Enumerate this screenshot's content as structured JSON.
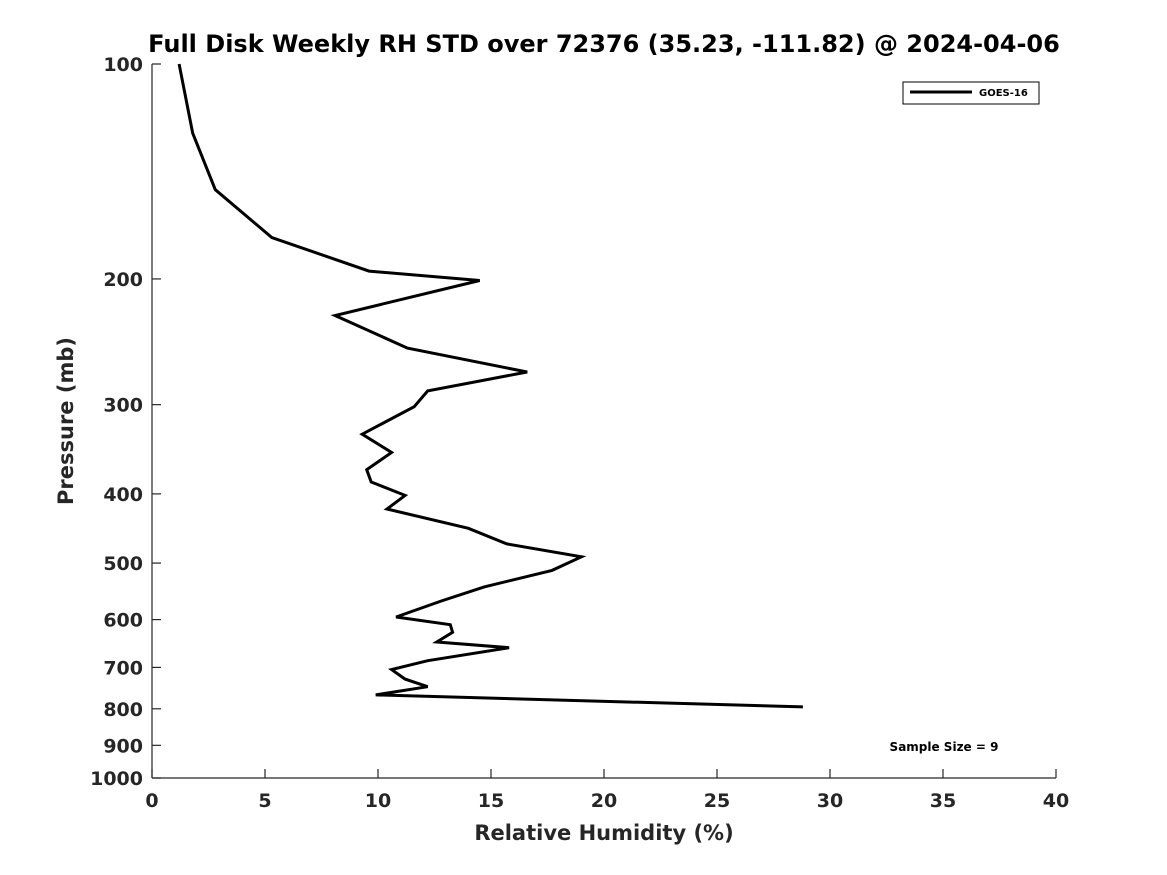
{
  "chart_data": {
    "type": "line",
    "title": "Full Disk Weekly RH STD over 72376 (35.23, -111.82) @ 2024-04-06",
    "xlabel": "Relative Humidity (%)",
    "ylabel": "Pressure (mb)",
    "xlim": [
      0,
      40
    ],
    "ylim": [
      100,
      1000
    ],
    "yscale": "log",
    "y_reversed": true,
    "grid": false,
    "xticks": [
      0,
      5,
      10,
      15,
      20,
      25,
      30,
      35,
      40
    ],
    "xtick_labels": [
      "0",
      "5",
      "10",
      "15",
      "20",
      "25",
      "30",
      "35",
      "40"
    ],
    "yticks": [
      100,
      200,
      300,
      400,
      500,
      600,
      700,
      800,
      900,
      1000
    ],
    "ytick_labels": [
      "100",
      "200",
      "300",
      "400",
      "500",
      "600",
      "700",
      "800",
      "900",
      "1000"
    ],
    "legend": {
      "placement": "top-right",
      "entries": [
        "GOES-16"
      ]
    },
    "annotation": "Sample Size = 9",
    "series": [
      {
        "name": "GOES-16",
        "color": "#000000",
        "points": [
          [
            1.2,
            100
          ],
          [
            1.8,
            125
          ],
          [
            2.8,
            150
          ],
          [
            5.3,
            175
          ],
          [
            9.6,
            195
          ],
          [
            14.5,
            201
          ],
          [
            8.1,
            225
          ],
          [
            11.3,
            250
          ],
          [
            16.6,
            270
          ],
          [
            12.2,
            287
          ],
          [
            11.6,
            302
          ],
          [
            9.3,
            330
          ],
          [
            10.6,
            350
          ],
          [
            9.5,
            370
          ],
          [
            9.7,
            385
          ],
          [
            11.2,
            402
          ],
          [
            10.4,
            420
          ],
          [
            14.0,
            447
          ],
          [
            15.7,
            470
          ],
          [
            19.0,
            490
          ],
          [
            17.7,
            512
          ],
          [
            14.7,
            540
          ],
          [
            12.8,
            565
          ],
          [
            10.8,
            595
          ],
          [
            13.2,
            610
          ],
          [
            13.3,
            625
          ],
          [
            12.6,
            645
          ],
          [
            15.8,
            657
          ],
          [
            12.2,
            685
          ],
          [
            10.6,
            705
          ],
          [
            11.2,
            727
          ],
          [
            12.2,
            745
          ],
          [
            9.9,
            765
          ],
          [
            28.8,
            795
          ]
        ]
      }
    ]
  }
}
